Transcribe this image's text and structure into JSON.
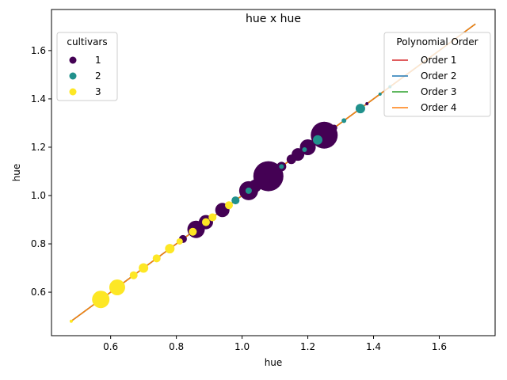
{
  "chart_data": {
    "type": "scatter",
    "title": "hue x hue",
    "xlabel": "hue",
    "ylabel": "hue",
    "xlim": [
      0.42,
      1.77
    ],
    "ylim": [
      0.42,
      1.77
    ],
    "xticks": [
      "0.6",
      "0.8",
      "1.0",
      "1.2",
      "1.4",
      "1.6"
    ],
    "yticks": [
      "0.6",
      "0.8",
      "1.0",
      "1.2",
      "1.4",
      "1.6"
    ],
    "xtick_values": [
      0.6,
      0.8,
      1.0,
      1.2,
      1.4,
      1.6
    ],
    "ytick_values": [
      0.6,
      0.8,
      1.0,
      1.2,
      1.4,
      1.6
    ],
    "grid": false,
    "legends": [
      {
        "title": "cultivars",
        "placement": "top-left",
        "entries": [
          {
            "label": "1",
            "color": "#440154"
          },
          {
            "label": "2",
            "color": "#21918c"
          },
          {
            "label": "3",
            "color": "#fde725"
          }
        ]
      },
      {
        "title": "Polynomial Order",
        "placement": "top-right",
        "entries": [
          {
            "label": "Order 1",
            "color": "#d62728"
          },
          {
            "label": "Order 2",
            "color": "#1f77b4"
          },
          {
            "label": "Order 3",
            "color": "#2ca02c"
          },
          {
            "label": "Order 4",
            "color": "#ff7f0e"
          }
        ]
      }
    ],
    "series": [
      {
        "name": "1",
        "color": "#440154",
        "points": [
          {
            "x": 0.82,
            "y": 0.82,
            "size": 5
          },
          {
            "x": 0.86,
            "y": 0.86,
            "size": 11
          },
          {
            "x": 0.89,
            "y": 0.89,
            "size": 9
          },
          {
            "x": 0.94,
            "y": 0.94,
            "size": 9
          },
          {
            "x": 1.02,
            "y": 1.02,
            "size": 12
          },
          {
            "x": 1.04,
            "y": 1.04,
            "size": 8
          },
          {
            "x": 1.06,
            "y": 1.06,
            "size": 10
          },
          {
            "x": 1.08,
            "y": 1.08,
            "size": 19
          },
          {
            "x": 1.12,
            "y": 1.12,
            "size": 6
          },
          {
            "x": 1.15,
            "y": 1.15,
            "size": 6
          },
          {
            "x": 1.17,
            "y": 1.17,
            "size": 8
          },
          {
            "x": 1.2,
            "y": 1.2,
            "size": 10
          },
          {
            "x": 1.25,
            "y": 1.25,
            "size": 17
          },
          {
            "x": 1.28,
            "y": 1.28,
            "size": 4
          },
          {
            "x": 1.38,
            "y": 1.38,
            "size": 2
          }
        ]
      },
      {
        "name": "2",
        "color": "#21918c",
        "points": [
          {
            "x": 0.98,
            "y": 0.98,
            "size": 5
          },
          {
            "x": 1.02,
            "y": 1.02,
            "size": 4
          },
          {
            "x": 1.12,
            "y": 1.12,
            "size": 3
          },
          {
            "x": 1.19,
            "y": 1.19,
            "size": 3
          },
          {
            "x": 1.23,
            "y": 1.23,
            "size": 6
          },
          {
            "x": 1.31,
            "y": 1.31,
            "size": 3
          },
          {
            "x": 1.36,
            "y": 1.36,
            "size": 6
          },
          {
            "x": 1.42,
            "y": 1.42,
            "size": 2
          },
          {
            "x": 1.45,
            "y": 1.45,
            "size": 2
          }
        ]
      },
      {
        "name": "3",
        "color": "#fde725",
        "points": [
          {
            "x": 0.48,
            "y": 0.48,
            "size": 2
          },
          {
            "x": 0.57,
            "y": 0.57,
            "size": 11
          },
          {
            "x": 0.62,
            "y": 0.62,
            "size": 10
          },
          {
            "x": 0.67,
            "y": 0.67,
            "size": 5
          },
          {
            "x": 0.7,
            "y": 0.7,
            "size": 6
          },
          {
            "x": 0.74,
            "y": 0.74,
            "size": 5
          },
          {
            "x": 0.78,
            "y": 0.78,
            "size": 6
          },
          {
            "x": 0.81,
            "y": 0.81,
            "size": 4
          },
          {
            "x": 0.85,
            "y": 0.85,
            "size": 5
          },
          {
            "x": 0.89,
            "y": 0.89,
            "size": 5
          },
          {
            "x": 0.91,
            "y": 0.91,
            "size": 5
          },
          {
            "x": 0.96,
            "y": 0.96,
            "size": 5
          }
        ]
      }
    ],
    "fit_lines": [
      {
        "name": "Order 1",
        "color": "#d62728",
        "x": [
          0.48,
          1.71
        ],
        "y": [
          0.48,
          1.71
        ]
      },
      {
        "name": "Order 2",
        "color": "#1f77b4",
        "x": [
          0.48,
          1.71
        ],
        "y": [
          0.48,
          1.71
        ]
      },
      {
        "name": "Order 3",
        "color": "#2ca02c",
        "x": [
          0.48,
          1.71
        ],
        "y": [
          0.48,
          1.71
        ]
      },
      {
        "name": "Order 4",
        "color": "#ff7f0e",
        "x": [
          0.48,
          1.71
        ],
        "y": [
          0.48,
          1.71
        ]
      }
    ]
  }
}
